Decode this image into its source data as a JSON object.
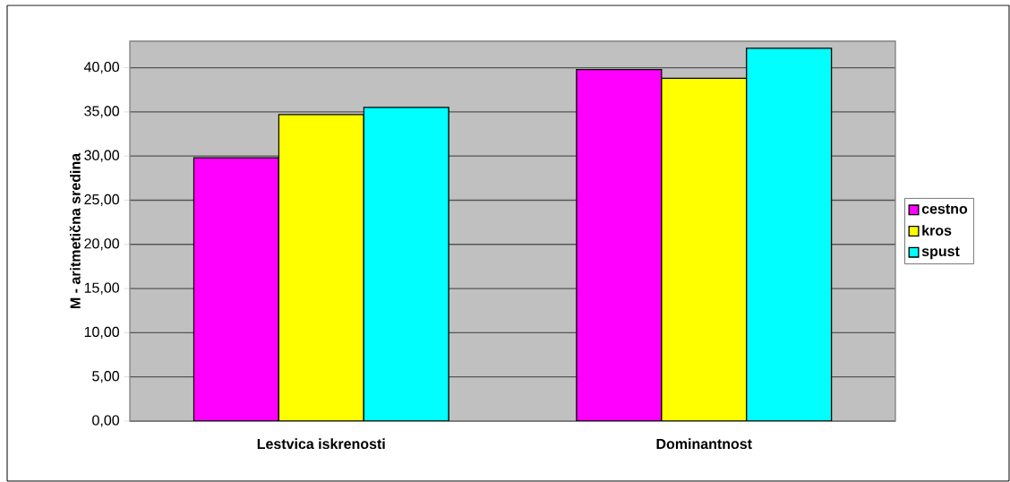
{
  "chart_data": {
    "type": "bar",
    "ylabel": "M - aritmetična sredina",
    "categories": [
      "Lestvica iskrenosti",
      "Dominantnost"
    ],
    "series": [
      {
        "name": "cestno",
        "color": "#ff00ff",
        "values": [
          29.8,
          39.8
        ]
      },
      {
        "name": "kros",
        "color": "#ffff00",
        "values": [
          34.7,
          38.8
        ]
      },
      {
        "name": "spust",
        "color": "#00ffff",
        "values": [
          35.5,
          42.2
        ]
      }
    ],
    "ylim": [
      0,
      43
    ],
    "yticks": [
      {
        "value": 0,
        "label": "0,00"
      },
      {
        "value": 5,
        "label": "5,00"
      },
      {
        "value": 10,
        "label": "10,00"
      },
      {
        "value": 15,
        "label": "15,00"
      },
      {
        "value": 20,
        "label": "20,00"
      },
      {
        "value": 25,
        "label": "25,00"
      },
      {
        "value": 30,
        "label": "30,00"
      },
      {
        "value": 35,
        "label": "35,00"
      },
      {
        "value": 40,
        "label": "40,00"
      }
    ],
    "grid": "y",
    "legend": "right"
  }
}
